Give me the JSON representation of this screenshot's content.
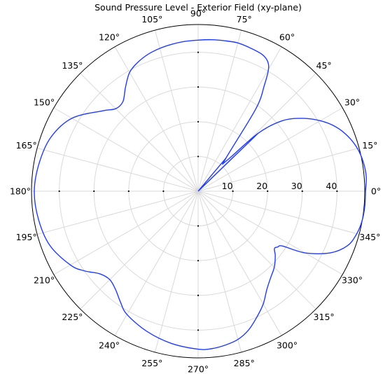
{
  "chart_data": {
    "type": "polar-line",
    "title": "Sound Pressure Level - Exterior Field (xy-plane)",
    "angle_unit": "deg",
    "angle_ticks": [
      0,
      15,
      30,
      45,
      60,
      75,
      90,
      105,
      120,
      135,
      150,
      165,
      180,
      195,
      210,
      225,
      240,
      255,
      270,
      285,
      300,
      315,
      330,
      345
    ],
    "angle_tick_labels": [
      "0°",
      "15°",
      "30°",
      "45°",
      "60°",
      "75°",
      "90°",
      "105°",
      "120°",
      "135°",
      "150°",
      "165°",
      "180°",
      "195°",
      "210°",
      "225°",
      "240°",
      "255°",
      "270°",
      "285°",
      "300°",
      "315°",
      "330°",
      "345°"
    ],
    "radial_ticks": [
      10,
      20,
      30,
      40
    ],
    "radial_tick_labels": [
      "10",
      "20",
      "30",
      "40"
    ],
    "rlim": [
      0,
      48
    ],
    "grid": true,
    "line_color": "#1f3bff",
    "series": [
      {
        "theta": [
          0,
          5,
          10,
          15,
          20,
          25,
          30,
          35,
          40,
          44,
          47,
          50,
          55,
          58,
          60,
          62,
          65,
          70,
          75,
          80,
          85,
          90,
          95,
          100,
          105,
          110,
          115,
          120,
          125,
          130,
          135,
          140,
          150,
          160,
          170,
          180,
          190,
          200,
          210,
          215,
          220,
          225,
          230,
          235,
          240,
          250,
          260,
          270,
          275,
          280,
          285,
          290,
          295,
          300,
          305,
          310,
          315,
          320,
          323,
          325,
          327,
          330,
          335,
          340,
          345,
          350,
          355,
          360
        ],
        "r": [
          48.2,
          48.6,
          48.3,
          47.5,
          46.0,
          43.8,
          40.6,
          36.6,
          31.5,
          24.0,
          12.0,
          12.5,
          29.0,
          36.0,
          40.5,
          42.5,
          43.5,
          43.9,
          44.2,
          44.0,
          43.8,
          43.5,
          43.3,
          43.0,
          42.6,
          42.0,
          41.0,
          39.5,
          36.5,
          33.7,
          33.6,
          36.0,
          42.0,
          45.2,
          46.5,
          47.2,
          46.7,
          45.5,
          42.5,
          40.0,
          37.0,
          36.0,
          37.0,
          39.0,
          41.0,
          43.0,
          44.5,
          45.5,
          45.5,
          45.0,
          44.2,
          42.5,
          40.0,
          37.5,
          34.5,
          32.5,
          31.0,
          29.0,
          27.5,
          28.0,
          29.0,
          35.5,
          42.0,
          45.8,
          47.3,
          48.0,
          48.2,
          48.2
        ]
      }
    ]
  }
}
